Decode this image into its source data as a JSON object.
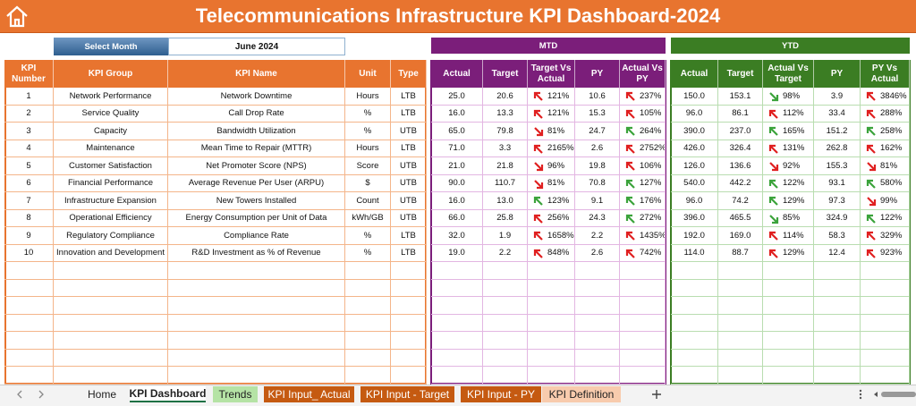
{
  "header": {
    "title": "Telecommunications Infrastructure KPI Dashboard-2024",
    "select_label": "Select Month",
    "select_value": "June 2024",
    "mtd": "MTD",
    "ytd": "YTD"
  },
  "table": {
    "headers": [
      "KPI Number",
      "KPI Group",
      "KPI Name",
      "Unit",
      "Type",
      "Actual",
      "Target",
      "Target Vs Actual",
      "PY",
      "Actual Vs PY",
      "Actual",
      "Target",
      "Actual Vs Target",
      "PY",
      "PY Vs Actual"
    ],
    "rows": [
      [
        "1",
        "Network Performance",
        "Network Downtime",
        "Hours",
        "LTB",
        "25.0",
        "20.6",
        "121%",
        "10.6",
        "237%",
        "150.0",
        "153.1",
        "98%",
        "3.9",
        "3846%"
      ],
      [
        "2",
        "Service Quality",
        "Call Drop Rate",
        "%",
        "LTB",
        "16.0",
        "13.3",
        "121%",
        "15.3",
        "105%",
        "96.0",
        "86.1",
        "112%",
        "33.4",
        "288%"
      ],
      [
        "3",
        "Capacity",
        "Bandwidth Utilization",
        "%",
        "UTB",
        "65.0",
        "79.8",
        "81%",
        "24.7",
        "264%",
        "390.0",
        "237.0",
        "165%",
        "151.2",
        "258%"
      ],
      [
        "4",
        "Maintenance",
        "Mean Time to Repair (MTTR)",
        "Hours",
        "LTB",
        "71.0",
        "3.3",
        "2165%",
        "2.6",
        "2752%",
        "426.0",
        "326.4",
        "131%",
        "262.8",
        "162%"
      ],
      [
        "5",
        "Customer Satisfaction",
        "Net Promoter Score (NPS)",
        "Score",
        "UTB",
        "21.0",
        "21.8",
        "96%",
        "19.8",
        "106%",
        "126.0",
        "136.6",
        "92%",
        "155.3",
        "81%"
      ],
      [
        "6",
        "Financial Performance",
        "Average Revenue Per User (ARPU)",
        "$",
        "UTB",
        "90.0",
        "110.7",
        "81%",
        "70.8",
        "127%",
        "540.0",
        "442.2",
        "122%",
        "93.1",
        "580%"
      ],
      [
        "7",
        "Infrastructure Expansion",
        "New Towers Installed",
        "Count",
        "UTB",
        "16.0",
        "13.0",
        "123%",
        "9.1",
        "176%",
        "96.0",
        "74.2",
        "129%",
        "97.3",
        "99%"
      ],
      [
        "8",
        "Operational Efficiency",
        "Energy Consumption per Unit of Data",
        "kWh/GB",
        "UTB",
        "66.0",
        "25.8",
        "256%",
        "24.3",
        "272%",
        "396.0",
        "465.5",
        "85%",
        "324.9",
        "122%"
      ],
      [
        "9",
        "Regulatory Compliance",
        "Compliance Rate",
        "%",
        "LTB",
        "32.0",
        "1.9",
        "1658%",
        "2.2",
        "1435%",
        "192.0",
        "169.0",
        "114%",
        "58.3",
        "329%"
      ],
      [
        "10",
        "Innovation and Development",
        "R&D Investment as % of Revenue",
        "%",
        "LTB",
        "19.0",
        "2.2",
        "848%",
        "2.6",
        "742%",
        "114.0",
        "88.7",
        "129%",
        "12.4",
        "923%"
      ]
    ],
    "status": [
      [
        "up-red",
        "up-red",
        "down-green",
        "up-red"
      ],
      [
        "up-red",
        "up-red",
        "up-red",
        "up-red"
      ],
      [
        "down-red",
        "up-green",
        "up-green",
        "up-green"
      ],
      [
        "up-red",
        "up-red",
        "up-red",
        "up-red"
      ],
      [
        "down-red",
        "up-red",
        "down-red",
        "down-red"
      ],
      [
        "down-red",
        "up-green",
        "up-green",
        "up-green"
      ],
      [
        "up-green",
        "up-green",
        "up-green",
        "down-red"
      ],
      [
        "up-red",
        "up-green",
        "down-green",
        "up-green"
      ],
      [
        "up-red",
        "up-red",
        "up-red",
        "up-red"
      ],
      [
        "up-red",
        "up-red",
        "up-red",
        "up-red"
      ]
    ]
  },
  "tabs": [
    "Home",
    "KPI Dashboard",
    "Trends",
    "KPI Input_ Actual",
    "KPI Input - Target",
    "KPI Input - PY",
    "KPI Definition"
  ]
}
